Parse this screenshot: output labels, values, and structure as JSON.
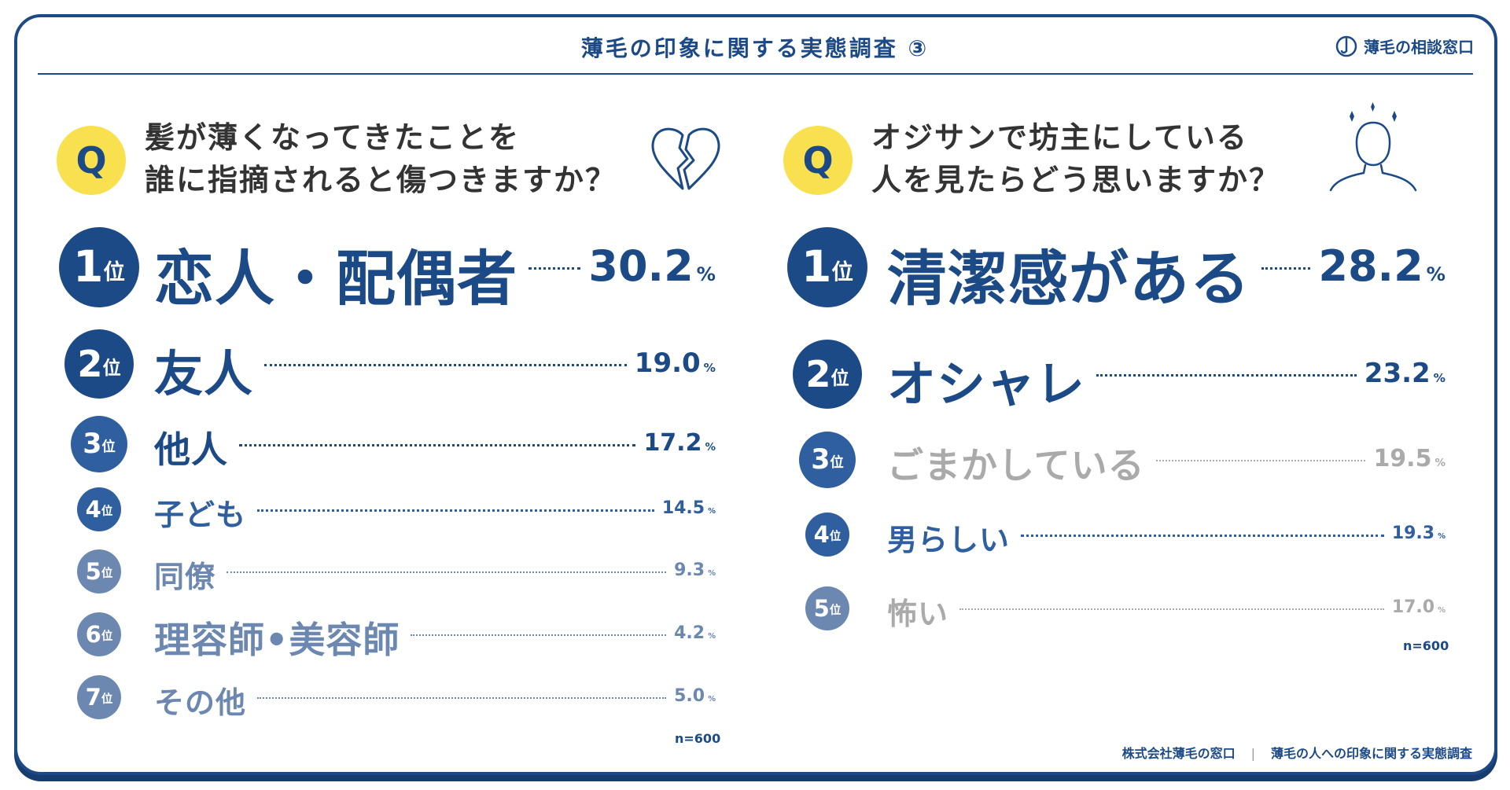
{
  "header": {
    "title": "薄毛の印象に関する実態調査 ③",
    "brand": "薄毛の相談窓口"
  },
  "left": {
    "q_badge": "Q",
    "question_line1": "髪が薄くなってきたことを",
    "question_line2": "誰に指摘されると傷つきますか？",
    "icon": "broken-heart-icon",
    "n_note": "n=600"
  },
  "right": {
    "q_badge": "Q",
    "question_line1": "オジサンで坊主にしている",
    "question_line2": "人を見たらどう思いますか？",
    "icon": "person-sparkle-icon",
    "n_note": "n=600"
  },
  "rank_unit": "位",
  "pct_unit": "%",
  "colors": {
    "navy": "#1c4a86",
    "mid_blue": "#2f5f9e",
    "light_blue": "#6c88b0",
    "gray": "#aaaaaa",
    "yellow": "#f8e04e"
  },
  "footer": {
    "company": "株式会社薄毛の窓口",
    "survey": "薄毛の人への印象に関する実態調査"
  },
  "chart_data": [
    {
      "type": "table",
      "title": "髪が薄くなってきたことを誰に指摘されると傷つきますか？",
      "categories": [
        "恋人・配偶者",
        "友人",
        "他人",
        "子ども",
        "同僚",
        "理容師•美容師",
        "その他"
      ],
      "ranks": [
        "1",
        "2",
        "3",
        "4",
        "5",
        "6",
        "7"
      ],
      "values": [
        30.2,
        19.0,
        17.2,
        14.5,
        9.3,
        4.2,
        5.0
      ],
      "value_labels": [
        "30.2",
        "19.0",
        "17.2",
        "14.5",
        "9.3",
        "4.2",
        "5.0"
      ],
      "unit": "%"
    },
    {
      "type": "table",
      "title": "オジサンで坊主にしている人を見たらどう思いますか？",
      "categories": [
        "清潔感がある",
        "オシャレ",
        "ごまかしている",
        "男らしい",
        "怖い"
      ],
      "ranks": [
        "1",
        "2",
        "3",
        "4",
        "5"
      ],
      "values": [
        28.2,
        23.2,
        19.5,
        19.3,
        17.0
      ],
      "value_labels": [
        "28.2",
        "23.2",
        "19.5",
        "19.3",
        "17.0"
      ],
      "unit": "%"
    }
  ]
}
